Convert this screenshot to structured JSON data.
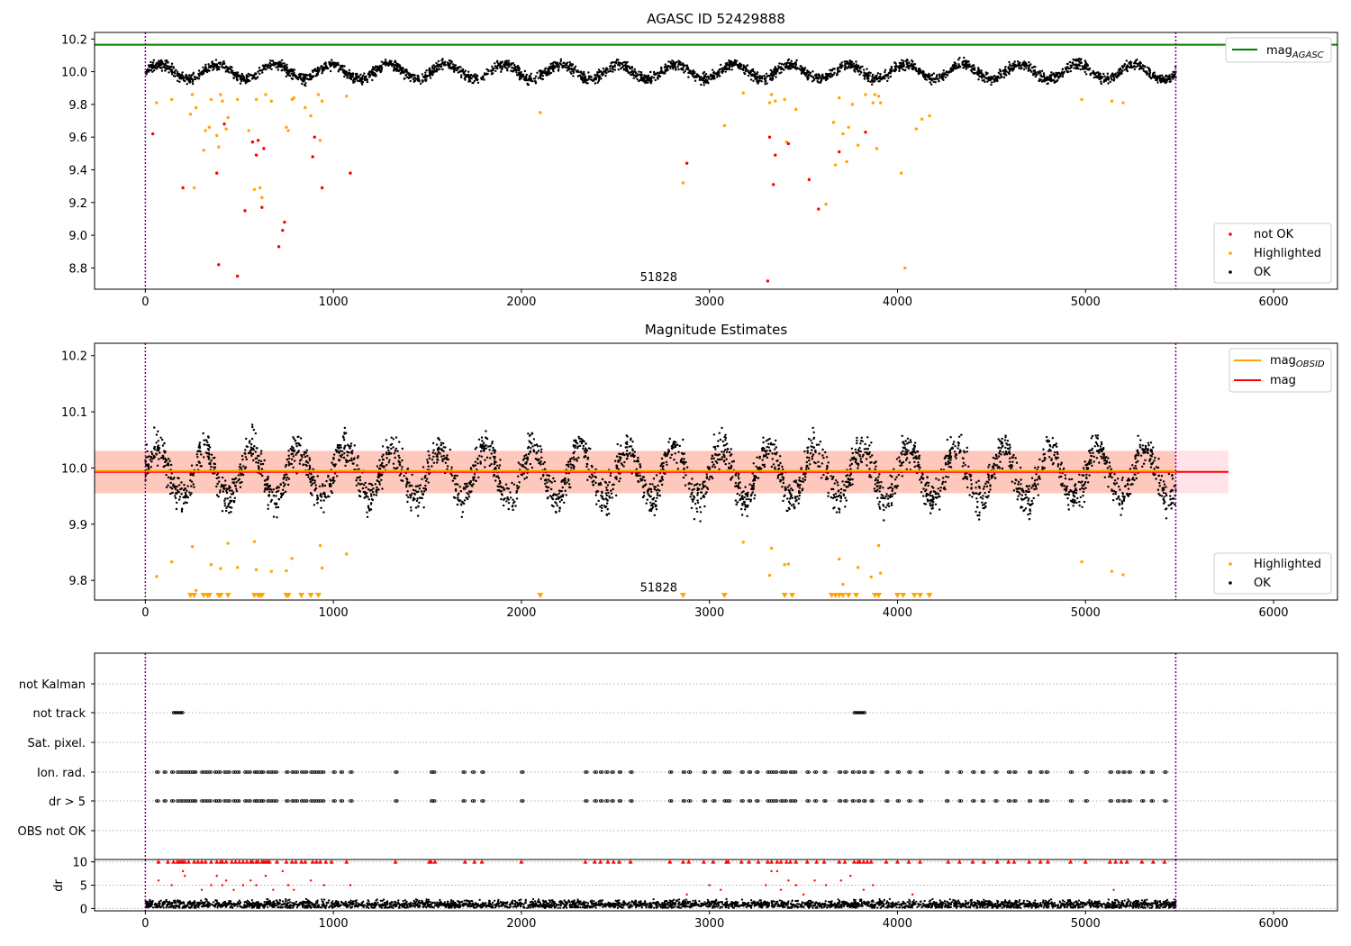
{
  "chart_data": [
    {
      "type": "scatter",
      "title": "AGASC ID 52429888",
      "xlim": [
        -270,
        6340
      ],
      "ylim": [
        8.67,
        10.24
      ],
      "xticks": [
        0,
        1000,
        2000,
        3000,
        4000,
        5000,
        6000
      ],
      "yticks": [
        8.8,
        9.0,
        9.2,
        9.4,
        9.6,
        9.8,
        10.0,
        10.2
      ],
      "ytick_labels": [
        "8.8",
        "9.0",
        "9.2",
        "9.4",
        "9.6",
        "9.8",
        "10.0",
        "10.2"
      ],
      "vlines": [
        0,
        5480
      ],
      "hline": {
        "y": 10.165,
        "color": "#008000"
      },
      "annotation": {
        "text": "51828",
        "x": 2730,
        "y": 8.72
      },
      "legend_top": [
        {
          "label": "mag",
          "sub": "AGASC",
          "color": "#008000"
        }
      ],
      "legend_bottom": [
        {
          "label": "not OK",
          "color": "#ff0000"
        },
        {
          "label": "Highlighted",
          "color": "#ffa500"
        },
        {
          "label": "OK",
          "color": "#000000"
        }
      ],
      "ok_band": {
        "center": 10.0,
        "amplitude": 0.045,
        "period": 305,
        "x_start": 0,
        "x_end": 5480
      },
      "not_ok": [
        [
          40,
          9.62
        ],
        [
          200,
          9.29
        ],
        [
          380,
          9.38
        ],
        [
          390,
          8.82
        ],
        [
          420,
          9.68
        ],
        [
          490,
          8.75
        ],
        [
          530,
          9.15
        ],
        [
          570,
          9.57
        ],
        [
          590,
          9.49
        ],
        [
          600,
          9.58
        ],
        [
          620,
          9.17
        ],
        [
          630,
          9.53
        ],
        [
          710,
          8.93
        ],
        [
          730,
          9.03
        ],
        [
          740,
          9.08
        ],
        [
          890,
          9.48
        ],
        [
          900,
          9.6
        ],
        [
          940,
          9.29
        ],
        [
          1090,
          9.38
        ],
        [
          2880,
          9.44
        ],
        [
          3310,
          8.72
        ],
        [
          3320,
          9.6
        ],
        [
          3340,
          9.31
        ],
        [
          3350,
          9.49
        ],
        [
          3420,
          9.56
        ],
        [
          3530,
          9.34
        ],
        [
          3580,
          9.16
        ],
        [
          3690,
          9.51
        ],
        [
          3830,
          9.63
        ]
      ],
      "highlighted": [
        [
          60,
          9.81
        ],
        [
          140,
          9.83
        ],
        [
          240,
          9.74
        ],
        [
          250,
          9.86
        ],
        [
          260,
          9.29
        ],
        [
          270,
          9.78
        ],
        [
          310,
          9.52
        ],
        [
          320,
          9.64
        ],
        [
          340,
          9.66
        ],
        [
          350,
          9.83
        ],
        [
          380,
          9.61
        ],
        [
          390,
          9.54
        ],
        [
          400,
          9.86
        ],
        [
          410,
          9.82
        ],
        [
          430,
          9.65
        ],
        [
          440,
          9.72
        ],
        [
          490,
          9.83
        ],
        [
          550,
          9.64
        ],
        [
          580,
          9.28
        ],
        [
          590,
          9.83
        ],
        [
          610,
          9.29
        ],
        [
          620,
          9.23
        ],
        [
          640,
          9.86
        ],
        [
          670,
          9.82
        ],
        [
          750,
          9.66
        ],
        [
          760,
          9.64
        ],
        [
          780,
          9.83
        ],
        [
          790,
          9.84
        ],
        [
          850,
          9.78
        ],
        [
          880,
          9.73
        ],
        [
          920,
          9.86
        ],
        [
          930,
          9.58
        ],
        [
          940,
          9.82
        ],
        [
          1070,
          9.85
        ],
        [
          2100,
          9.75
        ],
        [
          2860,
          9.32
        ],
        [
          3080,
          9.67
        ],
        [
          3180,
          9.87
        ],
        [
          3320,
          9.81
        ],
        [
          3330,
          9.86
        ],
        [
          3350,
          9.82
        ],
        [
          3400,
          9.83
        ],
        [
          3410,
          9.57
        ],
        [
          3460,
          9.77
        ],
        [
          3620,
          9.19
        ],
        [
          3660,
          9.69
        ],
        [
          3670,
          9.43
        ],
        [
          3690,
          9.84
        ],
        [
          3710,
          9.62
        ],
        [
          3730,
          9.45
        ],
        [
          3740,
          9.66
        ],
        [
          3760,
          9.8
        ],
        [
          3790,
          9.55
        ],
        [
          3830,
          9.86
        ],
        [
          3870,
          9.81
        ],
        [
          3880,
          9.86
        ],
        [
          3890,
          9.53
        ],
        [
          3900,
          9.85
        ],
        [
          3910,
          9.81
        ],
        [
          4020,
          9.38
        ],
        [
          4040,
          8.8
        ],
        [
          4100,
          9.65
        ],
        [
          4130,
          9.71
        ],
        [
          4170,
          9.73
        ],
        [
          4980,
          9.83
        ],
        [
          5140,
          9.82
        ],
        [
          5200,
          9.81
        ]
      ]
    },
    {
      "type": "scatter",
      "title": "Magnitude Estimates",
      "xlim": [
        -270,
        6340
      ],
      "ylim": [
        9.765,
        10.222
      ],
      "xticks": [
        0,
        1000,
        2000,
        3000,
        4000,
        5000,
        6000
      ],
      "yticks": [
        9.8,
        9.9,
        10.0,
        10.1,
        10.2
      ],
      "ytick_labels": [
        "9.8",
        "9.9",
        "10.0",
        "10.1",
        "10.2"
      ],
      "vlines": [
        0,
        5480
      ],
      "mag_line": {
        "y": 9.993,
        "color": "#ff0000",
        "band": [
          9.955,
          10.031
        ],
        "x_start": -270,
        "x_end": 5760
      },
      "mag_obsid": {
        "y": 9.995,
        "color": "#ffa500",
        "band": [
          9.955,
          10.03
        ],
        "x_start": -270,
        "x_end": 5480
      },
      "annotation": {
        "text": "51828",
        "x": 2730,
        "y": 9.78
      },
      "legend_top": [
        {
          "label": "mag",
          "sub": "OBSID",
          "color": "#ffa500"
        },
        {
          "label": "mag",
          "sub": "",
          "color": "#ff0000"
        }
      ],
      "legend_bottom": [
        {
          "label": "Highlighted",
          "color": "#ffa500"
        },
        {
          "label": "OK",
          "color": "#000000"
        }
      ],
      "ok_band": {
        "center": 9.99,
        "amplitude": 0.045,
        "period": 250,
        "x_start": 0,
        "x_end": 5480
      },
      "highlighted": [
        [
          60,
          9.807
        ],
        [
          140,
          9.833
        ],
        [
          250,
          9.86
        ],
        [
          270,
          9.782
        ],
        [
          350,
          9.828
        ],
        [
          400,
          9.821
        ],
        [
          440,
          9.866
        ],
        [
          490,
          9.823
        ],
        [
          580,
          9.869
        ],
        [
          590,
          9.819
        ],
        [
          670,
          9.816
        ],
        [
          750,
          9.817
        ],
        [
          780,
          9.839
        ],
        [
          930,
          9.862
        ],
        [
          940,
          9.822
        ],
        [
          1070,
          9.847
        ],
        [
          3180,
          9.868
        ],
        [
          3320,
          9.809
        ],
        [
          3330,
          9.857
        ],
        [
          3400,
          9.828
        ],
        [
          3420,
          9.829
        ],
        [
          3690,
          9.838
        ],
        [
          3710,
          9.793
        ],
        [
          3790,
          9.823
        ],
        [
          3860,
          9.806
        ],
        [
          3900,
          9.862
        ],
        [
          3910,
          9.813
        ],
        [
          4980,
          9.833
        ],
        [
          5140,
          9.816
        ],
        [
          5200,
          9.81
        ]
      ],
      "markers_x": [
        240,
        260,
        310,
        330,
        340,
        390,
        400,
        440,
        580,
        600,
        610,
        620,
        750,
        760,
        830,
        880,
        920,
        2100,
        2860,
        3080,
        3400,
        3440,
        3650,
        3670,
        3690,
        3710,
        3740,
        3780,
        3880,
        3900,
        4000,
        4030,
        4090,
        4120,
        4170
      ]
    },
    {
      "type": "scatter",
      "xlim": [
        -270,
        6340
      ],
      "xticks": [
        0,
        1000,
        2000,
        3000,
        4000,
        5000,
        6000
      ],
      "vlines": [
        0,
        5480
      ],
      "flag_labels": [
        "not Kalman",
        "not track",
        "Sat. pixel.",
        "Ion. rad.",
        "dr > 5",
        "OBS not OK"
      ],
      "not_track": [
        [
          150,
          200
        ],
        [
          3770,
          3830
        ]
      ],
      "flag_x": [
        60,
        100,
        140,
        170,
        190,
        210,
        230,
        250,
        260,
        300,
        320,
        340,
        370,
        390,
        420,
        440,
        470,
        490,
        530,
        550,
        580,
        590,
        610,
        620,
        650,
        670,
        690,
        750,
        780,
        800,
        830,
        850,
        880,
        900,
        920,
        940,
        1000,
        1040,
        1090,
        1330,
        1520,
        1530,
        1690,
        1740,
        1790,
        2000,
        2340,
        2390,
        2420,
        2450,
        2480,
        2520,
        2580,
        2790,
        2860,
        2890,
        2970,
        3020,
        3080,
        3100,
        3170,
        3210,
        3250,
        3310,
        3330,
        3350,
        3380,
        3400,
        3430,
        3450,
        3520,
        3560,
        3610,
        3690,
        3720,
        3760,
        3790,
        3820,
        3860,
        3940,
        4000,
        4060,
        4120,
        4260,
        4330,
        4400,
        4450,
        4520,
        4590,
        4620,
        4700,
        4760,
        4790,
        4920,
        5000,
        5130,
        5170,
        5200,
        5230,
        5300,
        5350,
        5420
      ],
      "dr_ylim": [
        -0.5,
        10.5
      ],
      "dr_yticks": [
        0,
        5,
        10
      ],
      "dr_ytick_labels": [
        "0",
        "5",
        "10"
      ],
      "dr_ylabel": "dr",
      "dr_scatter": [
        [
          70,
          6
        ],
        [
          140,
          5
        ],
        [
          200,
          8
        ],
        [
          210,
          7
        ],
        [
          300,
          4
        ],
        [
          350,
          5
        ],
        [
          380,
          7
        ],
        [
          410,
          5
        ],
        [
          430,
          6
        ],
        [
          470,
          4
        ],
        [
          520,
          5
        ],
        [
          560,
          6
        ],
        [
          590,
          5
        ],
        [
          640,
          7
        ],
        [
          680,
          4
        ],
        [
          730,
          8
        ],
        [
          760,
          5
        ],
        [
          790,
          4
        ],
        [
          880,
          6
        ],
        [
          950,
          5
        ],
        [
          1090,
          5
        ],
        [
          2880,
          3
        ],
        [
          3000,
          5
        ],
        [
          3060,
          4
        ],
        [
          3300,
          5
        ],
        [
          3330,
          8
        ],
        [
          3360,
          8
        ],
        [
          3380,
          4
        ],
        [
          3420,
          6
        ],
        [
          3460,
          5
        ],
        [
          3500,
          3
        ],
        [
          3560,
          6
        ],
        [
          3620,
          5
        ],
        [
          3700,
          6
        ],
        [
          3750,
          7
        ],
        [
          3820,
          4
        ],
        [
          3870,
          5
        ],
        [
          4080,
          3
        ],
        [
          5150,
          4
        ]
      ],
      "dr_capped_x": [
        70,
        120,
        150,
        170,
        180,
        190,
        200,
        210,
        230,
        260,
        280,
        300,
        320,
        350,
        380,
        400,
        410,
        430,
        460,
        480,
        500,
        520,
        540,
        560,
        570,
        590,
        600,
        620,
        630,
        640,
        650,
        660,
        700,
        750,
        780,
        800,
        830,
        850,
        890,
        910,
        930,
        960,
        990,
        1070,
        1330,
        1510,
        1520,
        1540,
        1700,
        1750,
        1790,
        2000,
        2340,
        2390,
        2420,
        2460,
        2490,
        2520,
        2580,
        2790,
        2860,
        2890,
        2970,
        3020,
        3090,
        3100,
        3170,
        3210,
        3260,
        3310,
        3330,
        3360,
        3380,
        3410,
        3430,
        3460,
        3520,
        3570,
        3610,
        3690,
        3720,
        3770,
        3790,
        3800,
        3820,
        3840,
        3860,
        3940,
        4000,
        4060,
        4120,
        4270,
        4330,
        4400,
        4460,
        4530,
        4590,
        4620,
        4700,
        4760,
        4800,
        4920,
        5000,
        5130,
        5160,
        5190,
        5220,
        5300,
        5360,
        5420
      ]
    }
  ]
}
